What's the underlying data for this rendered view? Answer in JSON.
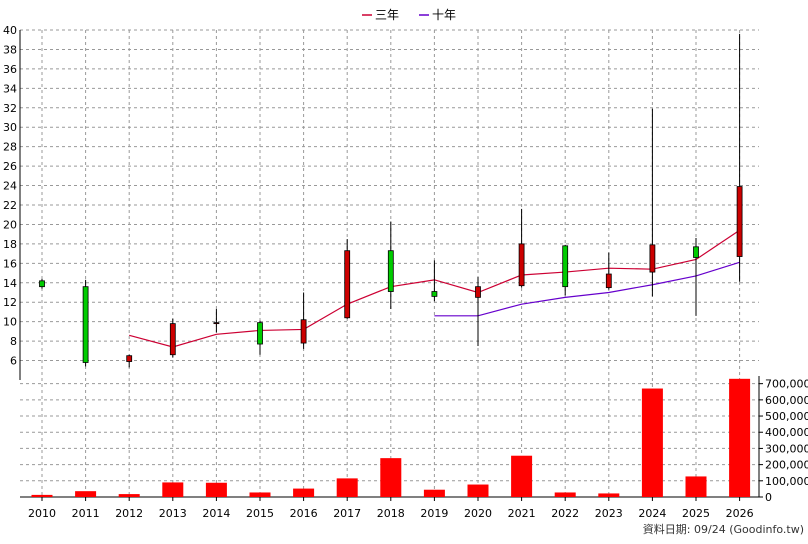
{
  "legend": [
    {
      "key": "三年",
      "label": "三年",
      "color": "#cc0033"
    },
    {
      "key": "十年",
      "label": "十年",
      "color": "#6600cc"
    }
  ],
  "watermark": "資料日期: 09/24  (Goodinfo.tw)",
  "chart_data": [
    {
      "type": "candlestick",
      "title": "",
      "x": [
        "2010",
        "2011",
        "2012",
        "2013",
        "2014",
        "2015",
        "2016",
        "2017",
        "2018",
        "2019",
        "2020",
        "2021",
        "2022",
        "2023",
        "2024",
        "2025",
        "2026"
      ],
      "ylim": [
        4,
        40
      ],
      "yticks": [
        6,
        8,
        10,
        12,
        14,
        16,
        18,
        20,
        22,
        24,
        26,
        28,
        30,
        32,
        34,
        36,
        38,
        40
      ],
      "grid": true,
      "legend_position": "top-center",
      "up_color": "#cc0000",
      "down_color": "#00cc00",
      "candles": [
        {
          "x": "2010",
          "open": 14.2,
          "close": 13.6,
          "high": 14.4,
          "low": 13.4
        },
        {
          "x": "2011",
          "open": 13.6,
          "close": 5.8,
          "high": 14.3,
          "low": 5.4
        },
        {
          "x": "2012",
          "open": 5.9,
          "close": 6.5,
          "high": 6.6,
          "low": 5.3
        },
        {
          "x": "2013",
          "open": 6.6,
          "close": 9.8,
          "high": 10.3,
          "low": 6.3
        },
        {
          "x": "2014",
          "open": 9.8,
          "close": 9.9,
          "high": 11.3,
          "low": 8.9
        },
        {
          "x": "2015",
          "open": 9.9,
          "close": 7.7,
          "high": 10.1,
          "low": 6.6
        },
        {
          "x": "2016",
          "open": 7.8,
          "close": 10.2,
          "high": 13.0,
          "low": 7.2
        },
        {
          "x": "2017",
          "open": 10.4,
          "close": 17.3,
          "high": 18.5,
          "low": 10.3
        },
        {
          "x": "2018",
          "open": 17.3,
          "close": 13.1,
          "high": 20.3,
          "low": 11.3
        },
        {
          "x": "2019",
          "open": 13.1,
          "close": 12.6,
          "high": 16.3,
          "low": 12.1
        },
        {
          "x": "2020",
          "open": 12.5,
          "close": 13.6,
          "high": 14.6,
          "low": 7.5
        },
        {
          "x": "2021",
          "open": 13.7,
          "close": 18.0,
          "high": 21.6,
          "low": 13.5
        },
        {
          "x": "2022",
          "open": 17.8,
          "close": 13.6,
          "high": 17.9,
          "low": 12.7
        },
        {
          "x": "2023",
          "open": 13.5,
          "close": 14.9,
          "high": 17.1,
          "low": 13.3
        },
        {
          "x": "2024",
          "open": 15.1,
          "close": 17.9,
          "high": 31.9,
          "low": 12.6
        },
        {
          "x": "2025",
          "open": 17.7,
          "close": 16.6,
          "high": 18.6,
          "low": 10.6
        },
        {
          "x": "2026",
          "open": 16.7,
          "close": 23.9,
          "high": 39.6,
          "low": 14.1
        }
      ],
      "series": [
        {
          "name": "三年",
          "color": "#cc0033",
          "values": [
            null,
            null,
            8.6,
            7.4,
            8.7,
            9.1,
            9.2,
            11.8,
            13.6,
            14.3,
            13.0,
            14.8,
            15.1,
            15.5,
            15.4,
            16.4,
            19.4
          ]
        },
        {
          "name": "十年",
          "color": "#6600cc",
          "values": [
            null,
            null,
            null,
            null,
            null,
            null,
            null,
            null,
            null,
            10.6,
            10.6,
            11.8,
            12.5,
            13.0,
            13.8,
            14.7,
            16.1
          ]
        }
      ]
    },
    {
      "type": "bar",
      "categories": [
        "2010",
        "2011",
        "2012",
        "2013",
        "2014",
        "2015",
        "2016",
        "2017",
        "2018",
        "2019",
        "2020",
        "2021",
        "2022",
        "2023",
        "2024",
        "2025",
        "2026"
      ],
      "values": [
        13000,
        36000,
        18000,
        90000,
        88000,
        28000,
        52000,
        115000,
        240000,
        45000,
        77000,
        255000,
        28000,
        22000,
        670000,
        127000,
        730000
      ],
      "ylim": [
        0,
        700000
      ],
      "yticks": [
        0,
        100000,
        200000,
        300000,
        400000,
        500000,
        600000,
        700000
      ],
      "ytick_labels": [
        "0",
        "100,000",
        "200,000",
        "300,000",
        "400,000",
        "500,000",
        "600,000",
        "700,000"
      ],
      "bar_color": "#ff0000",
      "grid": true
    }
  ]
}
